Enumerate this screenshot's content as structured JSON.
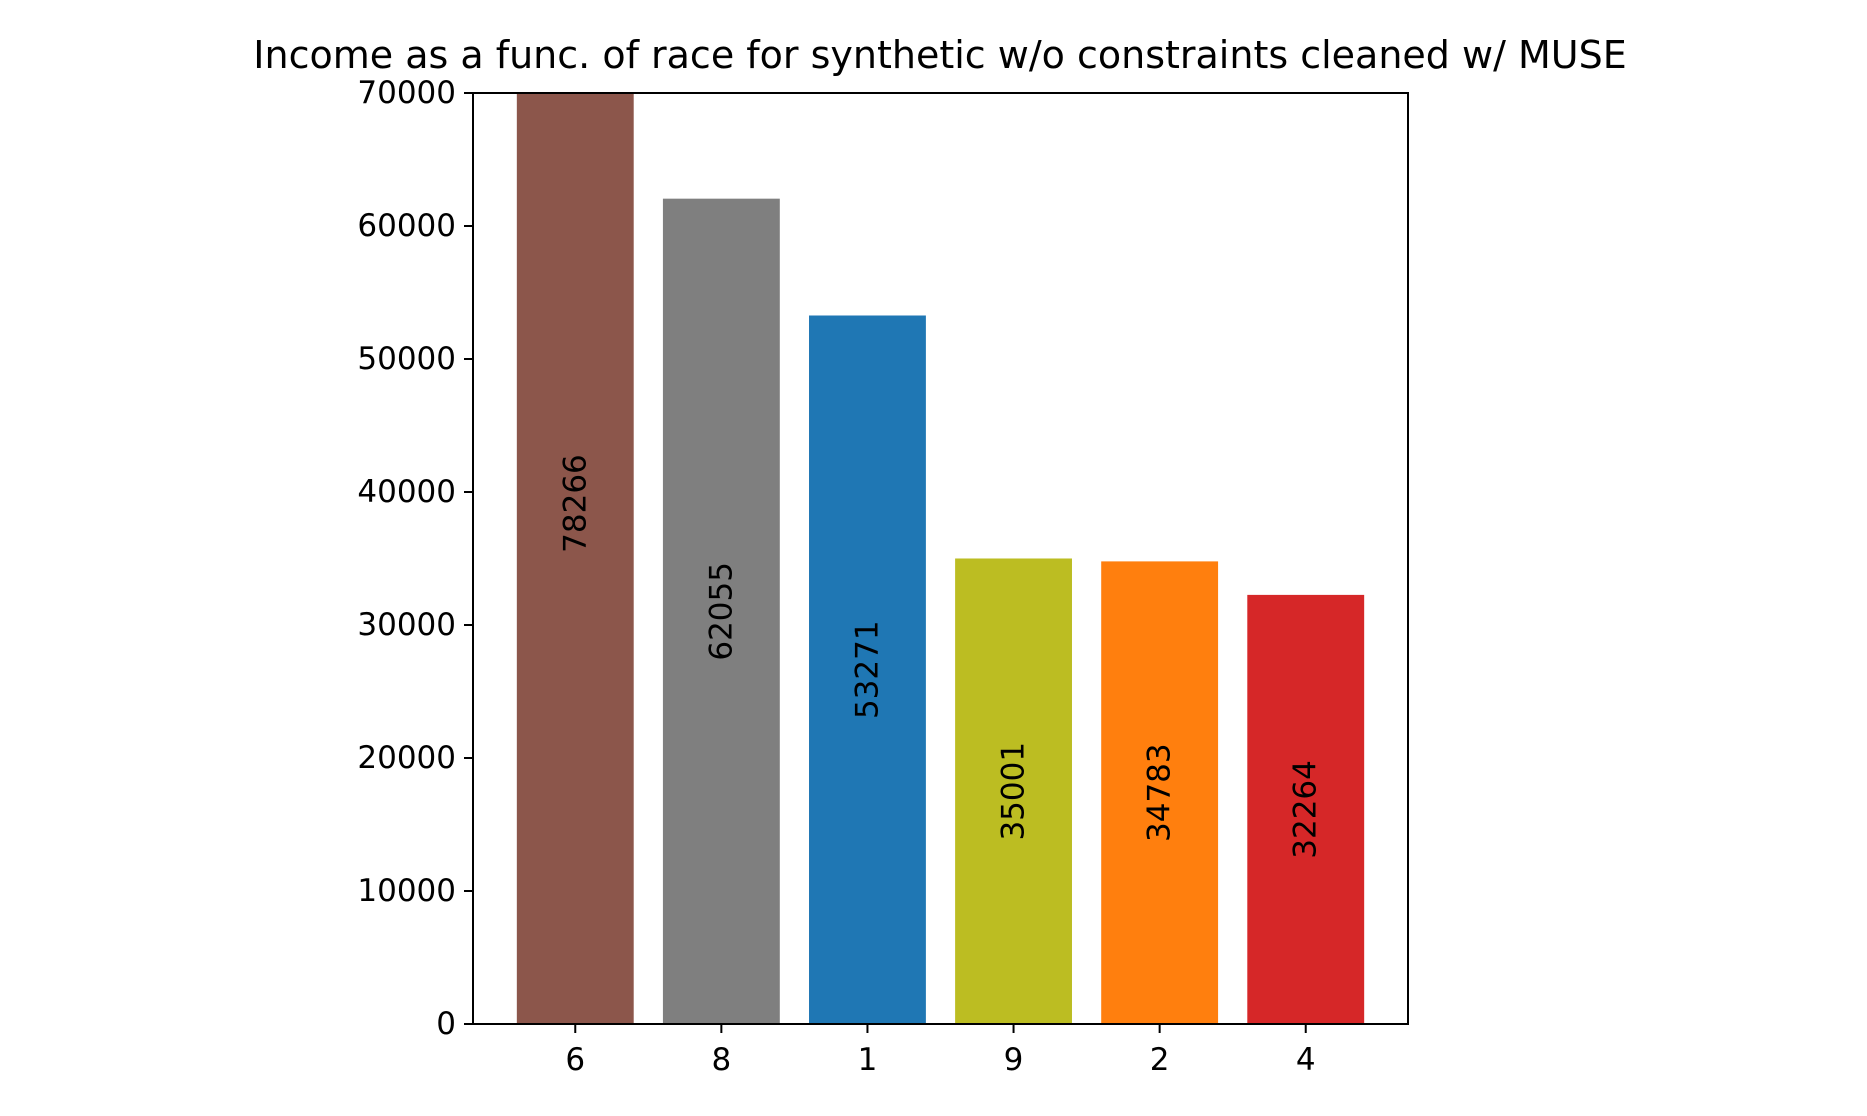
{
  "chart_data": {
    "type": "bar",
    "title": "Income as a func. of race for synthetic w/o constraints cleaned w/ MUSE",
    "xlabel": "",
    "ylabel": "",
    "categories": [
      "6",
      "8",
      "1",
      "9",
      "2",
      "4"
    ],
    "values": [
      78266,
      62055,
      53271,
      35001,
      34783,
      32264
    ],
    "bar_labels": [
      "78266",
      "62055",
      "53271",
      "35001",
      "34783",
      "32264"
    ],
    "colors": [
      "#8c564b",
      "#7f7f7f",
      "#1f77b4",
      "#bcbd22",
      "#ff7f0e",
      "#d62728"
    ],
    "ylim": [
      0,
      70000
    ],
    "yticks": [
      0,
      10000,
      20000,
      30000,
      40000,
      50000,
      60000,
      70000
    ],
    "ytick_labels": [
      "0",
      "10000",
      "20000",
      "30000",
      "40000",
      "50000",
      "60000",
      "70000"
    ],
    "grid": false,
    "legend": "none"
  }
}
